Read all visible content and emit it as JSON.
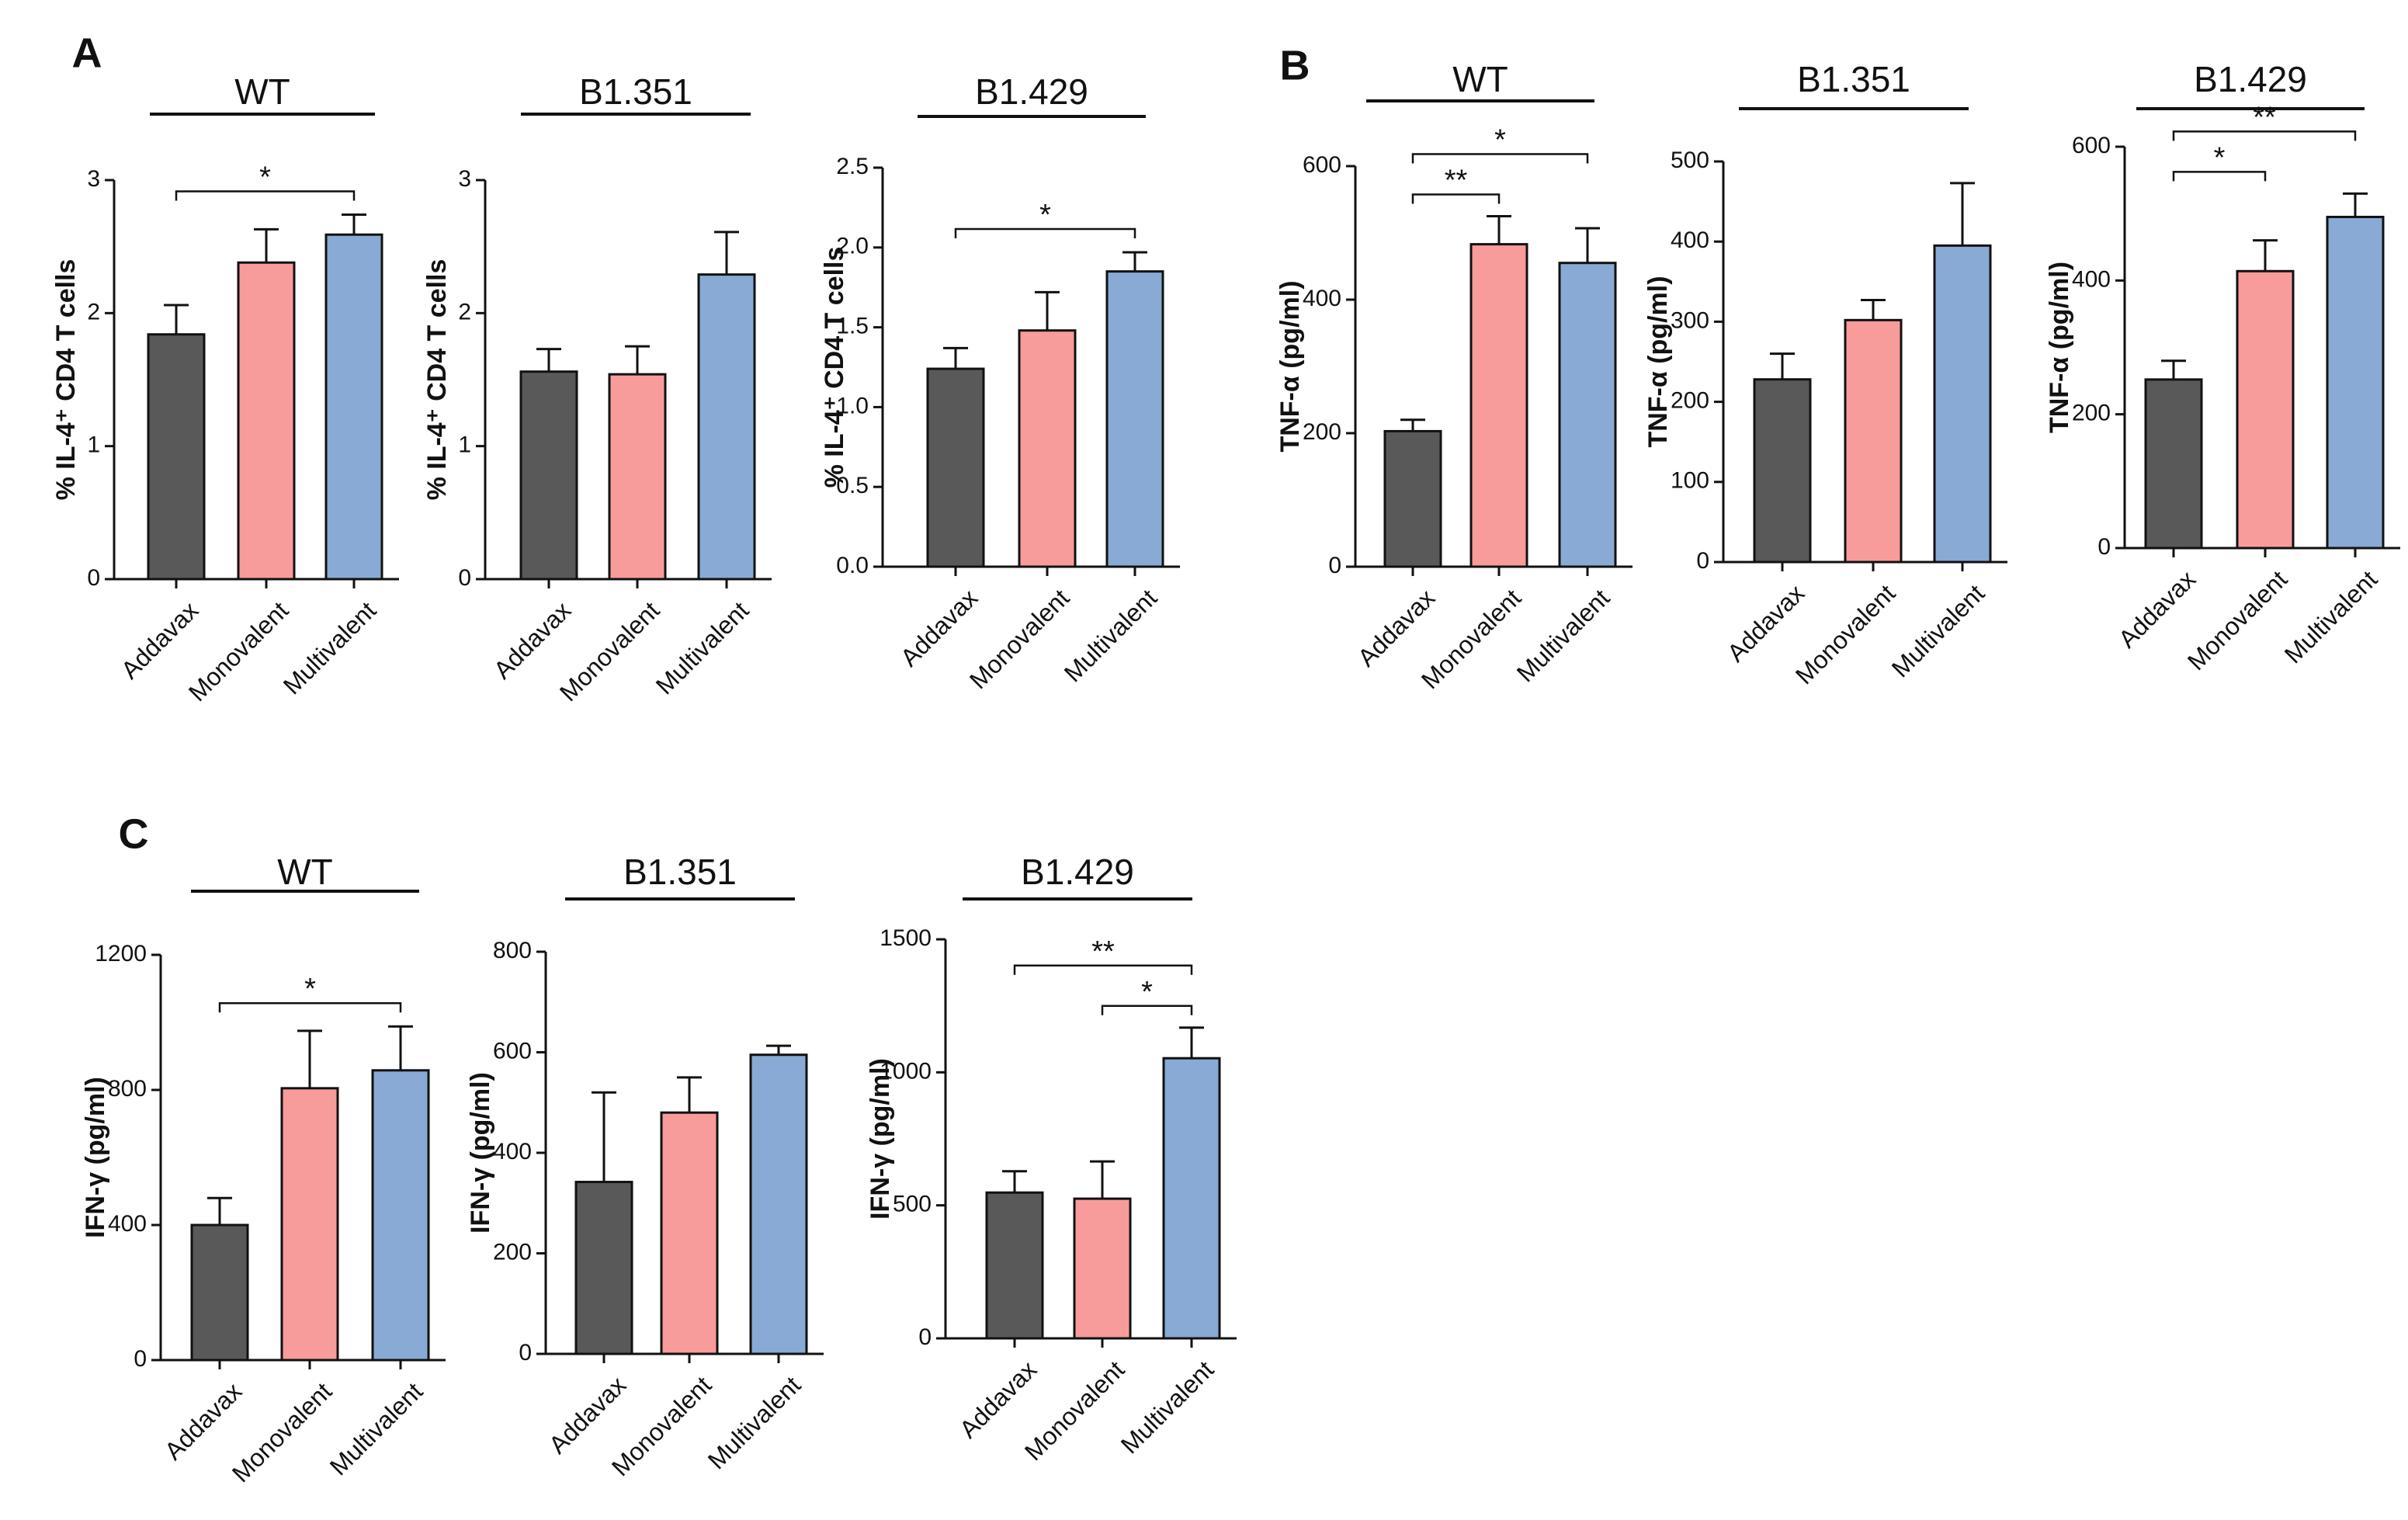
{
  "colors": {
    "addavax": "#595959",
    "monovalent": "#f89b9b",
    "multivalent": "#88aad4",
    "axis": "#111111"
  },
  "chart_data": [
    {
      "type": "bar",
      "panel": "A",
      "title": "WT",
      "ylabel": "% IL-4⁺ CD4 T cells",
      "categories": [
        "Addavax",
        "Monovalent",
        "Multivalent"
      ],
      "values": [
        1.84,
        2.38,
        2.59
      ],
      "errors": [
        0.22,
        0.25,
        0.15
      ],
      "ylim": [
        0,
        3
      ],
      "yticks": [
        "0",
        "1",
        "2",
        "3"
      ],
      "significance": [
        {
          "from": 0,
          "to": 2,
          "label": "*"
        }
      ]
    },
    {
      "type": "bar",
      "panel": "",
      "title": "B1.351",
      "ylabel": "% IL-4⁺ CD4 T cells",
      "categories": [
        "Addavax",
        "Monovalent",
        "Multivalent"
      ],
      "values": [
        1.56,
        1.54,
        2.29
      ],
      "errors": [
        0.17,
        0.21,
        0.32
      ],
      "ylim": [
        0,
        3
      ],
      "yticks": [
        "0",
        "1",
        "2",
        "3"
      ],
      "significance": []
    },
    {
      "type": "bar",
      "panel": "",
      "title": "B1.429",
      "ylabel": "% IL-4⁺ CD4 T cells",
      "categories": [
        "Addavax",
        "Monovalent",
        "Multivalent"
      ],
      "values": [
        1.24,
        1.48,
        1.85
      ],
      "errors": [
        0.13,
        0.24,
        0.12
      ],
      "ylim": [
        0,
        2.5
      ],
      "yticks": [
        "0.0",
        "0.5",
        "1.0",
        "1.5",
        "2.0",
        "2.5"
      ],
      "significance": [
        {
          "from": 0,
          "to": 2,
          "label": "*"
        }
      ]
    },
    {
      "type": "bar",
      "panel": "B",
      "title": "WT",
      "ylabel": "TNF-α  (pg/ml)",
      "categories": [
        "Addavax",
        "Monovalent",
        "Multivalent"
      ],
      "values": [
        203,
        483,
        455
      ],
      "errors": [
        17,
        42,
        52
      ],
      "ylim": [
        0,
        600
      ],
      "yticks": [
        "0",
        "200",
        "400",
        "600"
      ],
      "significance": [
        {
          "from": 0,
          "to": 1,
          "label": "**"
        },
        {
          "from": 0,
          "to": 2,
          "label": "*"
        }
      ]
    },
    {
      "type": "bar",
      "panel": "",
      "title": "B1.351",
      "ylabel": "TNF-α  (pg/ml)",
      "categories": [
        "Addavax",
        "Monovalent",
        "Multivalent"
      ],
      "values": [
        228,
        302,
        395
      ],
      "errors": [
        32,
        25,
        78
      ],
      "ylim": [
        0,
        500
      ],
      "yticks": [
        "0",
        "100",
        "200",
        "300",
        "400",
        "500"
      ],
      "significance": []
    },
    {
      "type": "bar",
      "panel": "",
      "title": "B1.429",
      "ylabel": "TNF-α  (pg/ml)",
      "categories": [
        "Addavax",
        "Monovalent",
        "Multivalent"
      ],
      "values": [
        252,
        414,
        495
      ],
      "errors": [
        28,
        46,
        35
      ],
      "ylim": [
        0,
        600
      ],
      "yticks": [
        "0",
        "200",
        "400",
        "600"
      ],
      "significance": [
        {
          "from": 0,
          "to": 1,
          "label": "*"
        },
        {
          "from": 0,
          "to": 2,
          "label": "**"
        }
      ]
    },
    {
      "type": "bar",
      "panel": "C",
      "title": "WT",
      "ylabel": "IFN-γ (pg/ml)",
      "categories": [
        "Addavax",
        "Monovalent",
        "Multivalent"
      ],
      "values": [
        400,
        805,
        858
      ],
      "errors": [
        80,
        170,
        130
      ],
      "ylim": [
        0,
        1200
      ],
      "yticks": [
        "0",
        "400",
        "800",
        "1200"
      ],
      "significance": [
        {
          "from": 0,
          "to": 2,
          "label": "*"
        }
      ]
    },
    {
      "type": "bar",
      "panel": "",
      "title": "B1.351",
      "ylabel": "IFN-γ (pg/ml)",
      "categories": [
        "Addavax",
        "Monovalent",
        "Multivalent"
      ],
      "values": [
        342,
        480,
        595
      ],
      "errors": [
        178,
        70,
        18
      ],
      "ylim": [
        0,
        800
      ],
      "yticks": [
        "0",
        "200",
        "400",
        "600",
        "800"
      ],
      "significance": []
    },
    {
      "type": "bar",
      "panel": "",
      "title": "B1.429",
      "ylabel": "IFN-γ (pg/ml)",
      "categories": [
        "Addavax",
        "Monovalent",
        "Multivalent"
      ],
      "values": [
        548,
        525,
        1053
      ],
      "errors": [
        80,
        140,
        115
      ],
      "ylim": [
        0,
        1500
      ],
      "yticks": [
        "0",
        "500",
        "1000",
        "1500"
      ],
      "significance": [
        {
          "from": 0,
          "to": 2,
          "label": "**"
        },
        {
          "from": 1,
          "to": 2,
          "label": "*"
        }
      ]
    }
  ]
}
